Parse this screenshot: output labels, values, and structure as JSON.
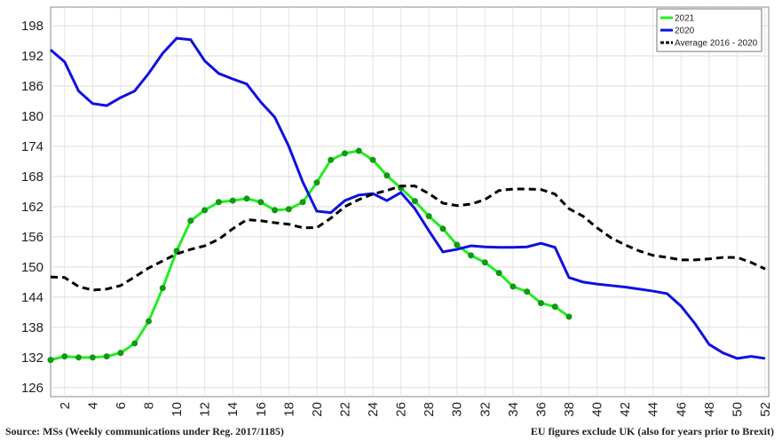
{
  "chart_data": {
    "type": "line",
    "x": [
      1,
      2,
      3,
      4,
      5,
      6,
      7,
      8,
      9,
      10,
      11,
      12,
      13,
      14,
      15,
      16,
      17,
      18,
      19,
      20,
      21,
      22,
      23,
      24,
      25,
      26,
      27,
      28,
      29,
      30,
      31,
      32,
      33,
      34,
      35,
      36,
      37,
      38,
      39,
      40,
      41,
      42,
      43,
      44,
      45,
      46,
      47,
      48,
      49,
      50,
      51,
      52
    ],
    "xlim": [
      1,
      52
    ],
    "xticks": [
      2,
      4,
      6,
      8,
      10,
      12,
      14,
      16,
      18,
      20,
      22,
      24,
      26,
      28,
      30,
      32,
      34,
      36,
      38,
      40,
      42,
      44,
      46,
      48,
      50,
      52
    ],
    "ylim": [
      124.2,
      201.7
    ],
    "yticks": [
      126,
      132,
      138,
      144,
      150,
      156,
      162,
      168,
      174,
      180,
      186,
      192,
      198
    ],
    "grid": true,
    "legend_position": "upper right",
    "series": [
      {
        "name": "2021",
        "color": "#22ee22",
        "style": "solid",
        "marker": true,
        "values": [
          131.5,
          132.2,
          132,
          132,
          132.2,
          132.9,
          134.8,
          139.2,
          145.8,
          153.2,
          159.2,
          161.3,
          162.9,
          163.2,
          163.6,
          162.9,
          161.3,
          161.5,
          162.9,
          166.8,
          171.3,
          172.6,
          173.1,
          171.3,
          168.2,
          165.7,
          163.1,
          160.1,
          157.6,
          154.4,
          152.3,
          150.9,
          148.8,
          146.1,
          145.1,
          142.8,
          142.1,
          140.1,
          null,
          null,
          null,
          null,
          null,
          null,
          null,
          null,
          null,
          null,
          null,
          null,
          null,
          null
        ]
      },
      {
        "name": "2020",
        "color": "#1010e0",
        "style": "solid",
        "marker": false,
        "values": [
          193.2,
          190.8,
          185,
          182.5,
          182.1,
          183.7,
          185,
          188.5,
          192.5,
          195.5,
          195.2,
          191,
          188.5,
          187.4,
          186.4,
          182.8,
          179.8,
          174,
          166.9,
          161.1,
          160.8,
          163.2,
          164.3,
          164.6,
          163.2,
          164.8,
          161.6,
          157.2,
          153,
          153.5,
          154.2,
          154,
          153.9,
          153.9,
          154,
          154.7,
          153.9,
          147.9,
          147,
          146.6,
          146.3,
          146,
          145.6,
          145.2,
          144.7,
          142.2,
          138.7,
          134.6,
          132.9,
          131.8,
          132.2,
          131.8
        ]
      },
      {
        "name": "Average 2016 - 2020",
        "color": "#000000",
        "style": "dashed",
        "marker": false,
        "values": [
          148,
          147.9,
          146.1,
          145.4,
          145.6,
          146.3,
          148,
          149.8,
          151.2,
          152.6,
          153.5,
          154.2,
          155.5,
          157.6,
          159.4,
          159.2,
          158.8,
          158.5,
          157.8,
          157.8,
          159.7,
          162,
          163.4,
          164.5,
          165.2,
          166.1,
          166.1,
          164.6,
          162.7,
          162.2,
          162.5,
          163.4,
          165.2,
          165.5,
          165.5,
          165.4,
          164.5,
          161.6,
          160.1,
          157.8,
          155.8,
          154.4,
          153.2,
          152.3,
          151.9,
          151.4,
          151.4,
          151.6,
          151.9,
          151.9,
          150.9,
          149.6
        ]
      }
    ],
    "source": "Source: MSs (Weekly communications under Reg. 2017/1185)",
    "note": "EU figures exclude UK (also for years prior to Brexit)"
  }
}
